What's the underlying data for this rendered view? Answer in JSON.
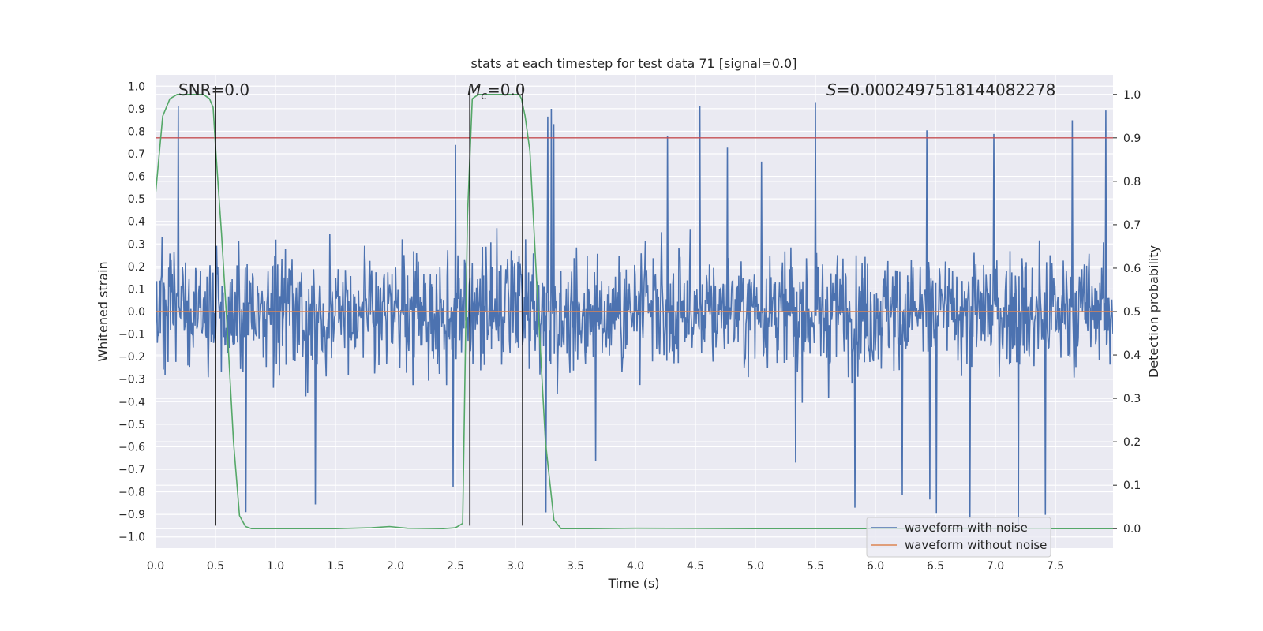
{
  "chart_data": {
    "type": "line",
    "title": "stats at each timestep for test data 71 [signal=0.0]",
    "xlabel": "Time (s)",
    "ylabel": "Whitened strain",
    "y2label": "Detection probability",
    "xlim": [
      0.0,
      7.98
    ],
    "ylim": [
      -1.05,
      1.05
    ],
    "y2lim": [
      -0.045,
      1.045
    ],
    "xticks": [
      "0.0",
      "0.5",
      "1.0",
      "1.5",
      "2.0",
      "2.5",
      "3.0",
      "3.5",
      "4.0",
      "4.5",
      "5.0",
      "5.5",
      "6.0",
      "6.5",
      "7.0",
      "7.5"
    ],
    "yticks": [
      "1.0",
      "0.9",
      "0.8",
      "0.7",
      "0.6",
      "0.5",
      "0.4",
      "0.3",
      "0.2",
      "0.1",
      "0.0",
      "-0.1",
      "-0.2",
      "-0.3",
      "-0.4",
      "-0.5",
      "-0.6",
      "-0.7",
      "-0.8",
      "-0.9",
      "-1.0"
    ],
    "y2ticks": [
      "1.0",
      "0.9",
      "0.8",
      "0.7",
      "0.6",
      "0.5",
      "0.4",
      "0.3",
      "0.2",
      "0.1",
      "0.0"
    ],
    "annotations": {
      "snr": "SNR=0.0",
      "mc_symbol": "M",
      "mc_sub": "c",
      "mc_value": "=0.0",
      "s_symbol": "S",
      "s_value": "=0.0002497518144082278"
    },
    "threshold": {
      "axis": "y2",
      "value": 0.9
    },
    "vertical_markers": [
      0.5,
      2.62,
      3.06
    ],
    "marker_range": [
      -0.95,
      1.0
    ],
    "series": [
      {
        "name": "waveform with noise",
        "color": "#4c72b0",
        "axis": "y",
        "envelope_min": -0.98,
        "envelope_max": 1.0,
        "samples": 1600
      },
      {
        "name": "waveform without noise",
        "color": "#dd8452",
        "axis": "y",
        "values": [
          0.0
        ]
      },
      {
        "name": "detection probability",
        "color": "#55a868",
        "axis": "y2",
        "x": [
          0.0,
          0.06,
          0.12,
          0.18,
          0.25,
          0.3,
          0.4,
          0.45,
          0.48,
          0.5,
          0.55,
          0.6,
          0.65,
          0.7,
          0.75,
          0.8,
          1.0,
          1.5,
          1.8,
          1.95,
          2.1,
          2.4,
          2.5,
          2.56,
          2.6,
          2.64,
          2.69,
          2.75,
          2.9,
          3.03,
          3.05,
          3.08,
          3.12,
          3.18,
          3.25,
          3.32,
          3.38,
          3.6,
          4.0,
          5.0,
          6.0,
          7.0,
          7.98
        ],
        "values": [
          0.77,
          0.95,
          0.99,
          1.0,
          1.0,
          1.0,
          1.0,
          0.99,
          0.97,
          0.88,
          0.68,
          0.45,
          0.2,
          0.03,
          0.005,
          0.0,
          0.0,
          0.0,
          0.002,
          0.005,
          0.001,
          0.0,
          0.002,
          0.012,
          0.72,
          0.99,
          1.0,
          1.0,
          1.0,
          1.0,
          0.99,
          0.95,
          0.87,
          0.55,
          0.2,
          0.02,
          0.0,
          0.0,
          0.001,
          0.0,
          0.0,
          0.0,
          0.0
        ]
      }
    ],
    "legend": {
      "position": "bottom-right",
      "entries": [
        "waveform with noise",
        "waveform without noise"
      ]
    },
    "grid": true
  },
  "colors": {
    "axes_bg": "#eaeaf2",
    "grid": "#ffffff",
    "threshold": "#c44e52",
    "markers": "#000000"
  }
}
